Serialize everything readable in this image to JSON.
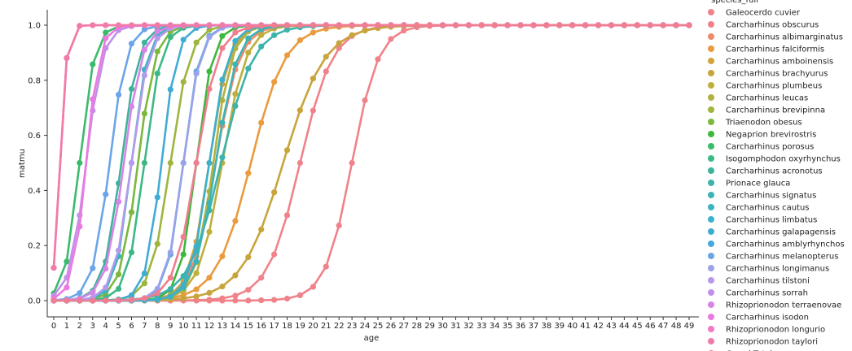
{
  "chart_data": {
    "type": "line",
    "xlabel": "age",
    "ylabel": "matmu",
    "x": [
      0,
      1,
      2,
      3,
      4,
      5,
      6,
      7,
      8,
      9,
      10,
      11,
      12,
      13,
      14,
      15,
      16,
      17,
      18,
      19,
      20,
      21,
      22,
      23,
      24,
      25,
      26,
      27,
      28,
      29,
      30,
      31,
      32,
      33,
      34,
      35,
      36,
      37,
      38,
      39,
      40,
      41,
      42,
      43,
      44,
      45,
      46,
      47,
      48,
      49
    ],
    "xlim": [
      0,
      49
    ],
    "ylim": [
      0,
      1.0
    ],
    "yticks": [
      "0.0",
      "0.2",
      "0.4",
      "0.6",
      "0.8",
      "1.0"
    ],
    "xticks": [
      "0",
      "1",
      "2",
      "3",
      "4",
      "5",
      "6",
      "7",
      "8",
      "9",
      "10",
      "11",
      "12",
      "13",
      "14",
      "15",
      "16",
      "17",
      "18",
      "19",
      "20",
      "21",
      "22",
      "23",
      "24",
      "25",
      "26",
      "27",
      "28",
      "29",
      "30",
      "31",
      "32",
      "33",
      "34",
      "35",
      "36",
      "37",
      "38",
      "39",
      "40",
      "41",
      "42",
      "43",
      "44",
      "45",
      "46",
      "47",
      "48",
      "49"
    ],
    "grid": false,
    "legend": {
      "title": "species_full",
      "placement": "right"
    },
    "series": [
      {
        "name": "Galeocerdo cuvier",
        "color": "#f0828a",
        "a50": 23.0,
        "k": 0.98
      },
      {
        "name": "Carcharhinus obscurus",
        "color": "#f0828a",
        "a50": 19.0,
        "k": 0.8
      },
      {
        "name": "Carcharhinus albimarginatus",
        "color": "#ef8a6a",
        "a50": 12.5,
        "k": 1.1
      },
      {
        "name": "Carcharhinus falciformis",
        "color": "#e99b3e",
        "a50": 15.2,
        "k": 0.75
      },
      {
        "name": "Carcharhinus amboinensis",
        "color": "#d4a33c",
        "a50": 12.0,
        "k": 1.3
      },
      {
        "name": "Carcharhinus brachyurus",
        "color": "#c8a43c",
        "a50": 17.7,
        "k": 0.62
      },
      {
        "name": "Carcharhinus plumbeus",
        "color": "#bfae3c",
        "a50": 13.0,
        "k": 1.1
      },
      {
        "name": "Carcharhinus leucas",
        "color": "#b0b13f",
        "a50": 12.3,
        "k": 1.4
      },
      {
        "name": "Carcharhinus brevipinna",
        "color": "#9fb53e",
        "a50": 9.0,
        "k": 1.35
      },
      {
        "name": "Triaenodon obesus",
        "color": "#7bb83c",
        "a50": 6.5,
        "k": 1.5
      },
      {
        "name": "Negaprion brevirostris",
        "color": "#3cb83c",
        "a50": 11.0,
        "k": 1.6
      },
      {
        "name": "Carcharhinus porosus",
        "color": "#3aba6b",
        "a50": 2.0,
        "k": 1.8
      },
      {
        "name": "Isogomphodon oxyrhynchus",
        "color": "#3cb887",
        "a50": 7.0,
        "k": 1.55
      },
      {
        "name": "Carcharhinus acronotus",
        "color": "#3cb49c",
        "a50": 5.2,
        "k": 1.5
      },
      {
        "name": "Prionace glauca",
        "color": "#3cb3ab",
        "a50": 12.9,
        "k": 0.8
      },
      {
        "name": "Carcharhinus signatus",
        "color": "#3cb3b8",
        "a50": 12.5,
        "k": 1.2
      },
      {
        "name": "Carcharhinus cautus",
        "color": "#3cb3c2",
        "a50": 6.0,
        "k": 1.65
      },
      {
        "name": "Carcharhinus limbatus",
        "color": "#3cb0cc",
        "a50": 12.0,
        "k": 1.4
      },
      {
        "name": "Carcharhinus galapagensis",
        "color": "#40acd6",
        "a50": 8.3,
        "k": 1.7
      },
      {
        "name": "Carcharhinus amblyrhynchos",
        "color": "#46a8e0",
        "a50": 10.0,
        "k": 1.6
      },
      {
        "name": "Carcharhinus melanopterus",
        "color": "#6aa5e8",
        "a50": 4.3,
        "k": 1.55
      },
      {
        "name": "Carcharhinus longimanus",
        "color": "#9aa2ea",
        "a50": 10.0,
        "k": 1.55
      },
      {
        "name": "Carcharhinus tilstoni",
        "color": "#b49aea",
        "a50": 6.0,
        "k": 1.5
      },
      {
        "name": "Carcharhinus sorrah",
        "color": "#c18fea",
        "a50": 2.5,
        "k": 1.6
      },
      {
        "name": "Rhizoprionodon terraenovae",
        "color": "#d684e6",
        "a50": 5.4,
        "k": 1.45
      },
      {
        "name": "Carcharhinus isodon",
        "color": "#ea7ae0",
        "a50": 2.5,
        "k": 2.0
      },
      {
        "name": "Rhizoprionodon longurio",
        "color": "#f07ac6",
        "a50": 0.5,
        "k": 4.0
      },
      {
        "name": "Rhizoprionodon taylori",
        "color": "#f17aa8",
        "a50": 0.5,
        "k": 4.0
      },
      {
        "name": "Grand Total",
        "color": "#f07d90",
        "a50": 11.0,
        "k": 1.2
      }
    ]
  }
}
